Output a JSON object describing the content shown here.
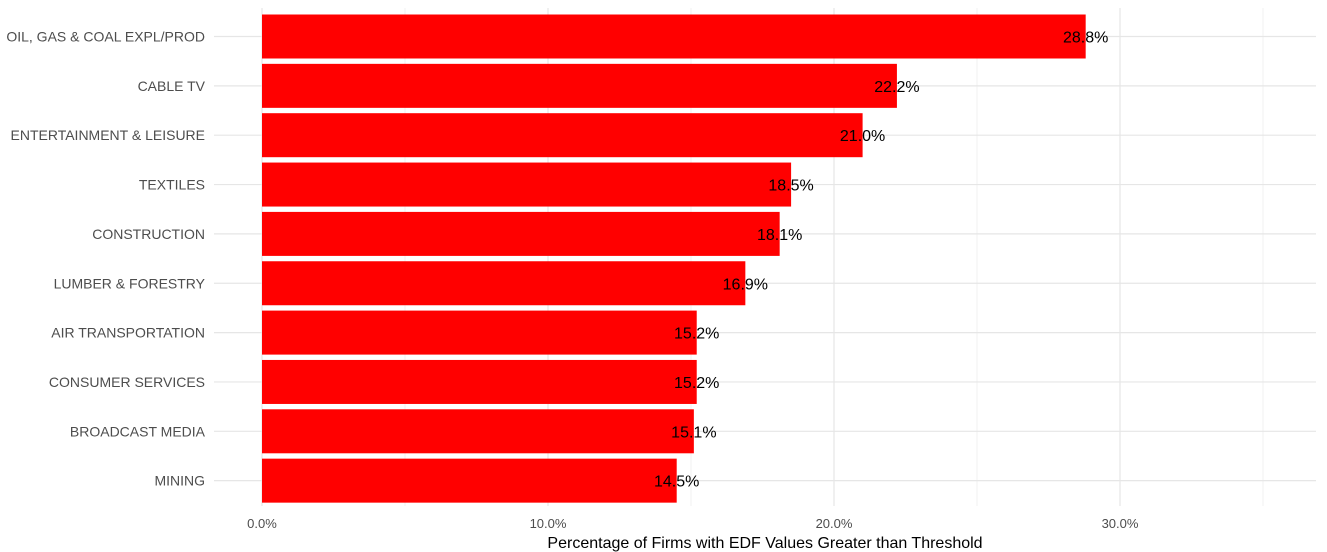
{
  "chart_data": {
    "type": "bar",
    "orientation": "horizontal",
    "categories": [
      "OIL, GAS & COAL EXPL/PROD",
      "CABLE TV",
      "ENTERTAINMENT & LEISURE",
      "TEXTILES",
      "CONSTRUCTION",
      "LUMBER & FORESTRY",
      "AIR TRANSPORTATION",
      "CONSUMER SERVICES",
      "BROADCAST MEDIA",
      "MINING"
    ],
    "values": [
      28.8,
      22.2,
      21.0,
      18.5,
      18.1,
      16.9,
      15.2,
      15.2,
      15.1,
      14.5
    ],
    "data_labels": [
      "28.8%",
      "22.2%",
      "21.0%",
      "18.5%",
      "18.1%",
      "16.9%",
      "15.2%",
      "15.2%",
      "15.1%",
      "14.5%"
    ],
    "xlabel": "Percentage of Firms with EDF Values Greater than Threshold",
    "ylabel": "",
    "xlim": [
      0,
      36.5
    ],
    "x_ticks": [
      0,
      10,
      20,
      30
    ],
    "x_tick_labels": [
      "0.0%",
      "10.0%",
      "20.0%",
      "30.0%"
    ],
    "bar_color": "#ff0000",
    "grid": true,
    "legend": "none"
  }
}
